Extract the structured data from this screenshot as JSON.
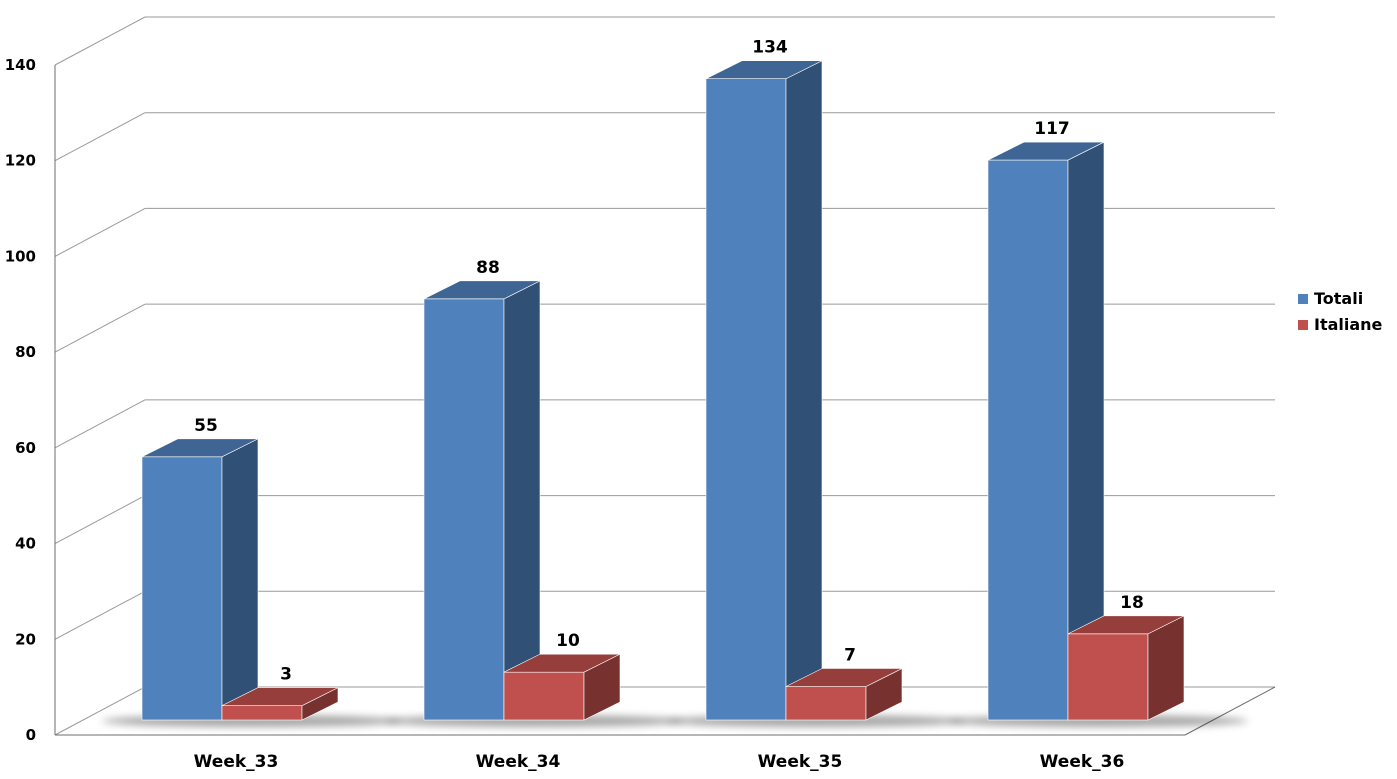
{
  "chart_data": {
    "type": "bar",
    "categories": [
      "Week_33",
      "Week_34",
      "Week_35",
      "Week_36"
    ],
    "series": [
      {
        "name": "Totali",
        "values": [
          55,
          88,
          134,
          117
        ],
        "color": "#4F81BD"
      },
      {
        "name": "Italiane",
        "values": [
          3,
          10,
          7,
          18
        ],
        "color": "#C0504D"
      }
    ],
    "ylim": [
      0,
      140
    ],
    "yticks": [
      "0",
      "20",
      "40",
      "60",
      "80",
      "100",
      "120",
      "140"
    ],
    "grid": true,
    "legend_position": "right",
    "data_labels": true,
    "style": "3d-column"
  }
}
